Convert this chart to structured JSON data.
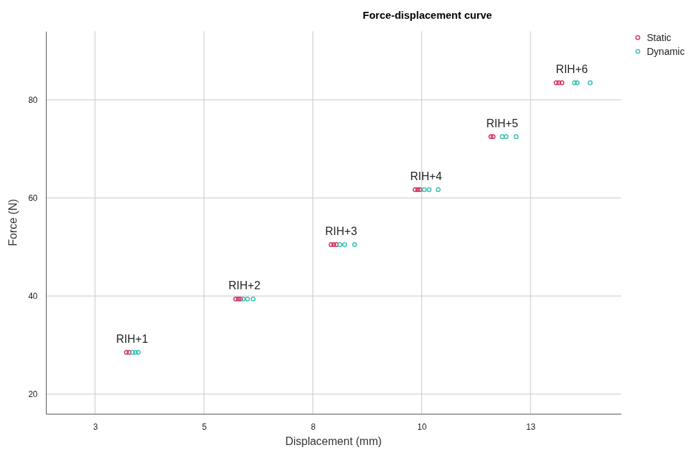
{
  "chart_data": {
    "type": "scatter",
    "title": "Force-displacement curve",
    "xlabel": "Displacement (mm)",
    "ylabel": "Force (N)",
    "xlim": [
      1.37,
      14.58
    ],
    "xticks": [
      {
        "value": 2.5,
        "label": "3"
      },
      5,
      {
        "value": 7.5,
        "label": "8"
      },
      10,
      {
        "value": 12.5,
        "label": "13"
      }
    ],
    "ylim": [
      16,
      94
    ],
    "yticks": [
      20,
      40,
      60,
      80
    ],
    "grid": true,
    "legend": "top right",
    "marker": "circle",
    "series": [
      {
        "name": "Static",
        "color": "#d2365f",
        "x": [
          3.22,
          3.28,
          5.73,
          5.79,
          5.84,
          7.92,
          7.98,
          8.04,
          9.85,
          9.91,
          9.96,
          11.59,
          11.64,
          13.09,
          13.15,
          13.22
        ],
        "values": [
          28.5,
          28.5,
          39.4,
          39.4,
          39.4,
          50.5,
          50.5,
          50.5,
          61.7,
          61.7,
          61.7,
          72.5,
          72.5,
          83.5,
          83.5,
          83.5
        ]
      },
      {
        "name": "Dynamic",
        "color": "#3dbfb3",
        "x": [
          3.36,
          3.43,
          3.49,
          5.9,
          6.0,
          6.13,
          8.12,
          8.23,
          8.46,
          10.06,
          10.17,
          10.38,
          11.85,
          11.94,
          12.17,
          13.51,
          13.57,
          13.87
        ],
        "values": [
          28.5,
          28.5,
          28.5,
          39.4,
          39.4,
          39.4,
          50.5,
          50.5,
          50.5,
          61.7,
          61.7,
          61.7,
          72.5,
          72.5,
          72.5,
          83.5,
          83.5,
          83.5
        ]
      }
    ],
    "annotations": [
      {
        "text": "RIH+1",
        "x": 3.35,
        "y": 28.5
      },
      {
        "text": "RIH+2",
        "x": 5.93,
        "y": 39.4
      },
      {
        "text": "RIH+3",
        "x": 8.15,
        "y": 50.5
      },
      {
        "text": "RIH+4",
        "x": 10.1,
        "y": 61.7
      },
      {
        "text": "RIH+5",
        "x": 11.85,
        "y": 72.5
      },
      {
        "text": "RIH+6",
        "x": 13.45,
        "y": 83.5
      }
    ]
  }
}
